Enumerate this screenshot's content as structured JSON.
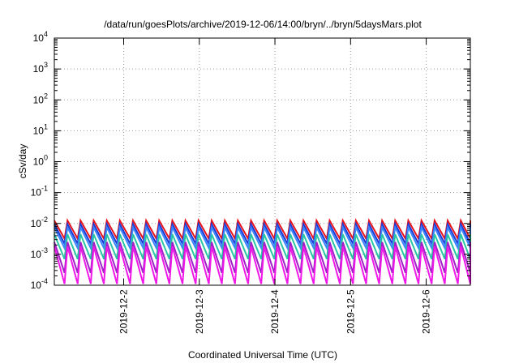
{
  "chart_data": {
    "type": "line",
    "title": "/data/run/goesPlots/archive/2019-12-06/14:00/bryn/../bryn/5daysMars.plot",
    "xlabel": "Coordinated Universal Time (UTC)",
    "ylabel": "cSv/day",
    "yscale": "log",
    "ylim": [
      0.0001,
      10000
    ],
    "xlim": [
      "2019-12-01 02:00",
      "2019-12-06 14:00"
    ],
    "grid": true,
    "x_ticks": [
      "2019-12-2",
      "2019-12-3",
      "2019-12-4",
      "2019-12-5",
      "2019-12-6"
    ],
    "y_ticks": [
      {
        "base": "10",
        "exp": "-4"
      },
      {
        "base": "10",
        "exp": "-3"
      },
      {
        "base": "10",
        "exp": "-2"
      },
      {
        "base": "10",
        "exp": "-1"
      },
      {
        "base": "10",
        "exp": "0"
      },
      {
        "base": "10",
        "exp": "1"
      },
      {
        "base": "10",
        "exp": "2"
      },
      {
        "base": "10",
        "exp": "3"
      },
      {
        "base": "10",
        "exp": "4"
      }
    ],
    "x_sawtooth": {
      "start": "2019-12-01 02:00",
      "tooth_period_hours": 4.16,
      "count": 33
    },
    "series": [
      {
        "color": "#e8141c",
        "peak": 0.0125,
        "trough": 0.0032
      },
      {
        "color": "#1a36d4",
        "peak": 0.0095,
        "trough": 0.0022
      },
      {
        "color": "#3a86ff",
        "peak": 0.0075,
        "trough": 0.0016
      },
      {
        "color": "#29c6a6",
        "peak": 0.0045,
        "trough": 0.0007
      },
      {
        "color": "#a020c8",
        "peak": 0.0025,
        "trough": 0.00025
      },
      {
        "color": "#f018e8",
        "peak": 0.0018,
        "trough": 0.00011
      }
    ]
  }
}
